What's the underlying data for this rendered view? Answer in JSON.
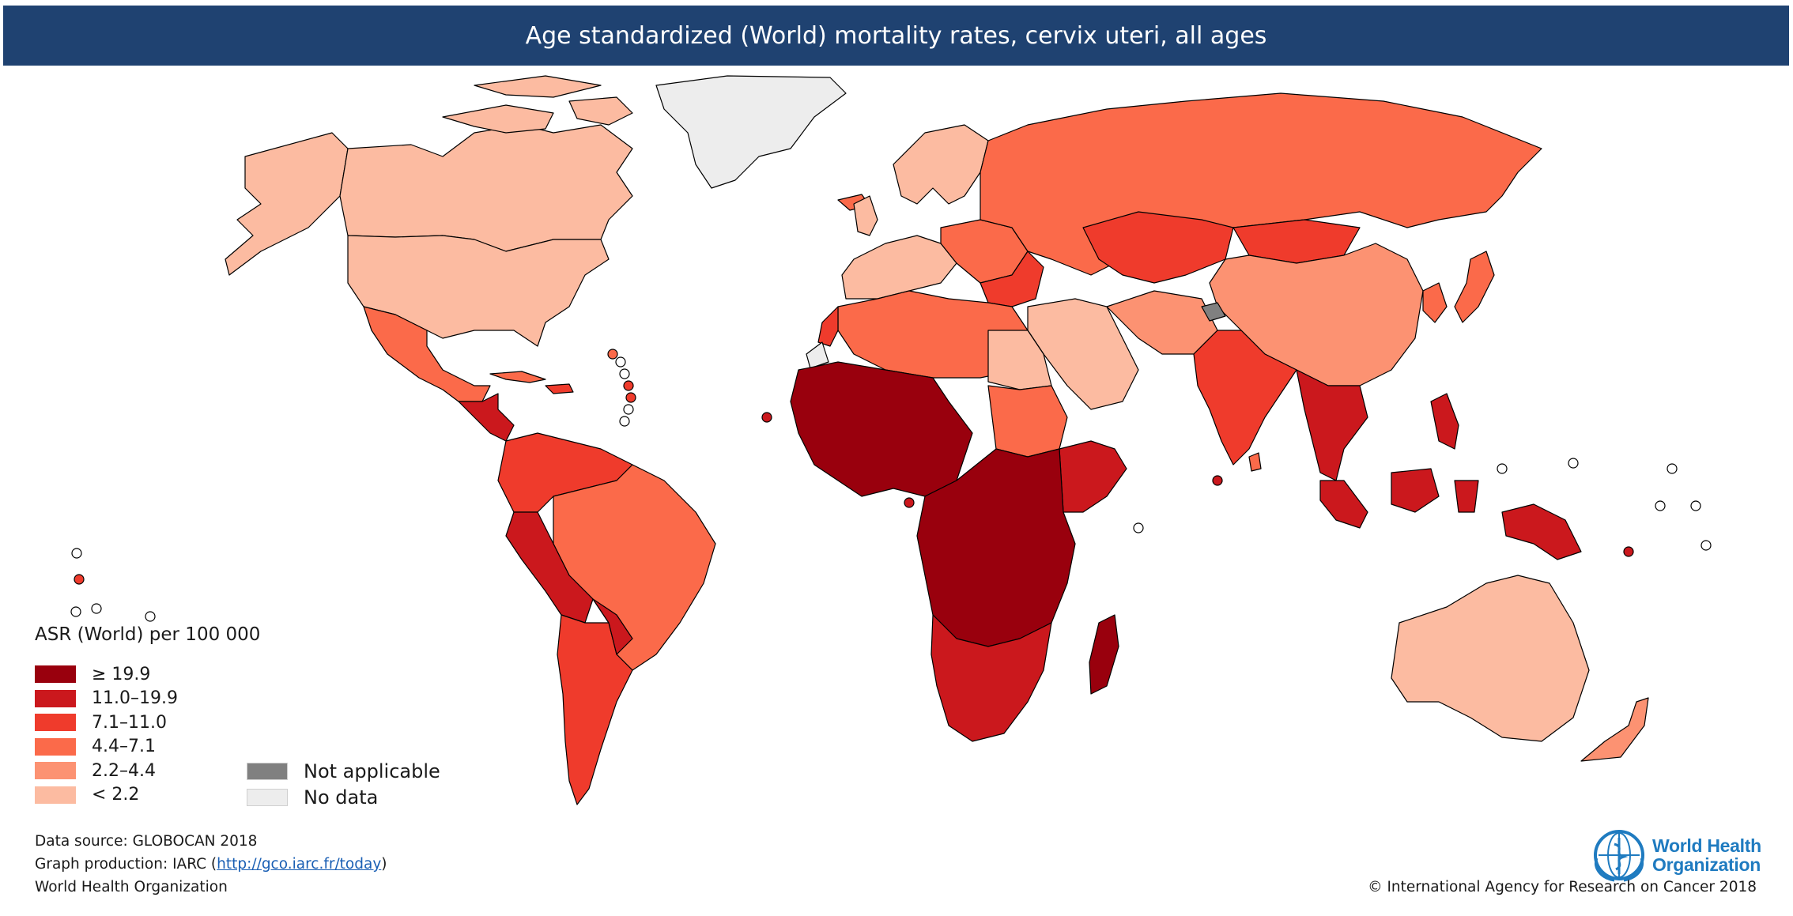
{
  "title": "Age standardized (World) mortality rates, cervix uteri, all ages",
  "legend": {
    "title": "ASR (World) per 100 000",
    "classes": [
      {
        "label": "≥ 19.9",
        "color": "#99000d"
      },
      {
        "label": "11.0–19.9",
        "color": "#cb181d"
      },
      {
        "label": "7.1–11.0",
        "color": "#ef3b2c"
      },
      {
        "label": "4.4–7.1",
        "color": "#fb6a4a"
      },
      {
        "label": "2.2–4.4",
        "color": "#fc9272"
      },
      {
        "label": "< 2.2",
        "color": "#fcbba1"
      }
    ],
    "extra": [
      {
        "label": "Not applicable",
        "color": "#808080"
      },
      {
        "label": "No data",
        "color": "#ededed"
      }
    ]
  },
  "footer": {
    "data_source": "Data source: GLOBOCAN 2018",
    "graph_production_prefix": "Graph production: IARC (",
    "graph_production_link": "http://gco.iarc.fr/today",
    "graph_production_suffix": ")",
    "organization": "World Health Organization",
    "copyright": "© International Agency for Research on Cancer 2018"
  },
  "logo": {
    "line1": "World Health",
    "line2": "Organization",
    "color": "#1f7bc0"
  }
}
